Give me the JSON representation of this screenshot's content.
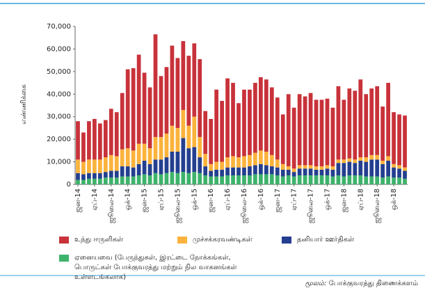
{
  "chart_data": {
    "type": "stacked_bar",
    "y_label": "எண்ணிக்கை",
    "source_label": "மூலம்:",
    "source": "போக்குவரத்து திணைக்களம்",
    "categories": [
      "ஜன-14",
      null,
      null,
      "ஏப்-14",
      null,
      null,
      "ஜூலை-14",
      null,
      null,
      "ஒக்-14",
      null,
      null,
      "ஜன-15",
      null,
      null,
      "ஏப்-15",
      null,
      null,
      "ஜூலை-15",
      null,
      null,
      "ஒக்-15",
      null,
      null,
      "ஜன-16",
      null,
      null,
      "ஏப்-16",
      null,
      null,
      "ஜூலை-16",
      null,
      null,
      "ஒக்-16",
      null,
      null,
      "ஜன-17",
      null,
      null,
      "ஏப்-17",
      null,
      null,
      "ஜூலை-17",
      null,
      null,
      "ஒக்-17",
      null,
      null,
      "ஜன-18",
      null,
      null,
      "ஏப்-18",
      null,
      null,
      "ஜூலை-18",
      null,
      null,
      "ஒக்-18",
      null,
      null
    ],
    "series": [
      {
        "name": "ஏனையவை (பேருந்துகள், இரட்டை நோக்கங்கள், பொருட்கள் போக்குவரத்து மற்றும் நில வாகனங்கள் உள்ளடங்கலாக)",
        "color": "#3db36b",
        "values": [
          2000,
          2000,
          2500,
          2500,
          2500,
          3000,
          3000,
          3000,
          3500,
          3500,
          3500,
          4000,
          4500,
          4000,
          5000,
          4500,
          5000,
          5500,
          5000,
          5500,
          5000,
          5500,
          5000,
          4000,
          3500,
          3500,
          3500,
          4000,
          4000,
          4000,
          4000,
          4000,
          4500,
          4500,
          4500,
          4500,
          4000,
          3500,
          4000,
          3500,
          4000,
          4000,
          4000,
          4000,
          4000,
          4000,
          3500,
          4000,
          3500,
          4000,
          4000,
          4000,
          3500,
          3500,
          3500,
          3000,
          3500,
          3000,
          3000,
          2500
        ]
      },
      {
        "name": "தனியார் ஊர்திகள்",
        "color": "#243f8f",
        "values": [
          3000,
          2500,
          2500,
          2500,
          2500,
          2500,
          3000,
          3000,
          4500,
          4500,
          4000,
          5000,
          6000,
          5000,
          6000,
          6500,
          7000,
          9000,
          9500,
          15000,
          11000,
          11000,
          7000,
          4000,
          2500,
          3000,
          3000,
          3500,
          3500,
          3500,
          3500,
          4000,
          4000,
          4500,
          4000,
          3500,
          3500,
          3000,
          2500,
          2000,
          3000,
          3000,
          3000,
          2500,
          2500,
          3000,
          3000,
          5500,
          6000,
          6000,
          5500,
          6500,
          6500,
          7500,
          7500,
          6000,
          7000,
          4500,
          4000,
          3500
        ]
      },
      {
        "name": "முச்சக்கரவண்டிகள்",
        "color": "#fbb33c",
        "values": [
          6000,
          5500,
          6000,
          6000,
          6000,
          6500,
          7000,
          6500,
          7500,
          8000,
          7500,
          9000,
          7500,
          7000,
          10000,
          10000,
          10500,
          11500,
          10500,
          12500,
          10000,
          13500,
          9000,
          5500,
          3000,
          3500,
          3500,
          4500,
          5000,
          4500,
          5000,
          5000,
          5500,
          6000,
          6000,
          5000,
          3500,
          2500,
          1500,
          1500,
          1500,
          1500,
          1500,
          1500,
          1500,
          1500,
          1500,
          1500,
          1500,
          1500,
          1500,
          1500,
          2000,
          2000,
          2000,
          1500,
          2000,
          1500,
          1500,
          1500
        ]
      },
      {
        "name": "உந்து ஈருளிகள்",
        "color": "#c8323a",
        "values": [
          17000,
          13000,
          17000,
          18000,
          16000,
          16500,
          20500,
          19500,
          25000,
          35000,
          36500,
          39500,
          31500,
          27000,
          45500,
          27000,
          29500,
          35500,
          31000,
          30500,
          31000,
          32500,
          34500,
          19000,
          20000,
          32000,
          27000,
          35000,
          32500,
          24000,
          29500,
          29000,
          31000,
          32500,
          32000,
          30000,
          27500,
          22000,
          32000,
          27000,
          31500,
          30500,
          32000,
          29500,
          29500,
          29500,
          26000,
          32500,
          26500,
          31000,
          30500,
          34500,
          28000,
          29500,
          30500,
          24000,
          32500,
          23000,
          22500,
          23000
        ]
      }
    ],
    "legend_order": [
      3,
      2,
      1,
      0
    ],
    "ylim": [
      0,
      70000
    ],
    "yticks": [
      0,
      {
        "value": 10000,
        "label": "10,000"
      },
      {
        "value": 20000,
        "label": "20,000"
      },
      {
        "value": 30000,
        "label": "30,000"
      },
      {
        "value": 40000,
        "label": "40,000"
      },
      {
        "value": 50000,
        "label": "50,000"
      },
      {
        "value": 60000,
        "label": "60,000"
      },
      {
        "value": 70000,
        "label": "70,000"
      }
    ],
    "grid": false
  }
}
